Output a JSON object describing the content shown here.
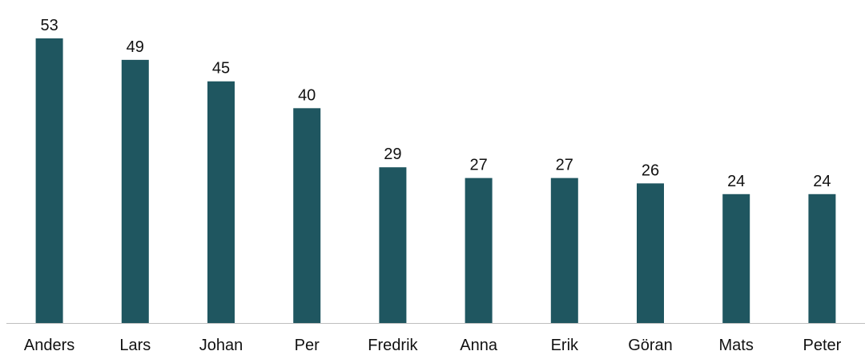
{
  "chart_data": {
    "type": "bar",
    "categories": [
      "Anders",
      "Lars",
      "Johan",
      "Per",
      "Fredrik",
      "Anna",
      "Erik",
      "Göran",
      "Mats",
      "Peter"
    ],
    "values": [
      53,
      49,
      45,
      40,
      29,
      27,
      27,
      26,
      24,
      24
    ],
    "data_labels": [
      "53",
      "49",
      "45",
      "40",
      "29",
      "27",
      "27",
      "26",
      "24",
      "24"
    ],
    "ylim": [
      0,
      53
    ],
    "grid": false,
    "legend": "none",
    "bar_color": "#1f5660",
    "axis_color": "#bfbfbf"
  }
}
